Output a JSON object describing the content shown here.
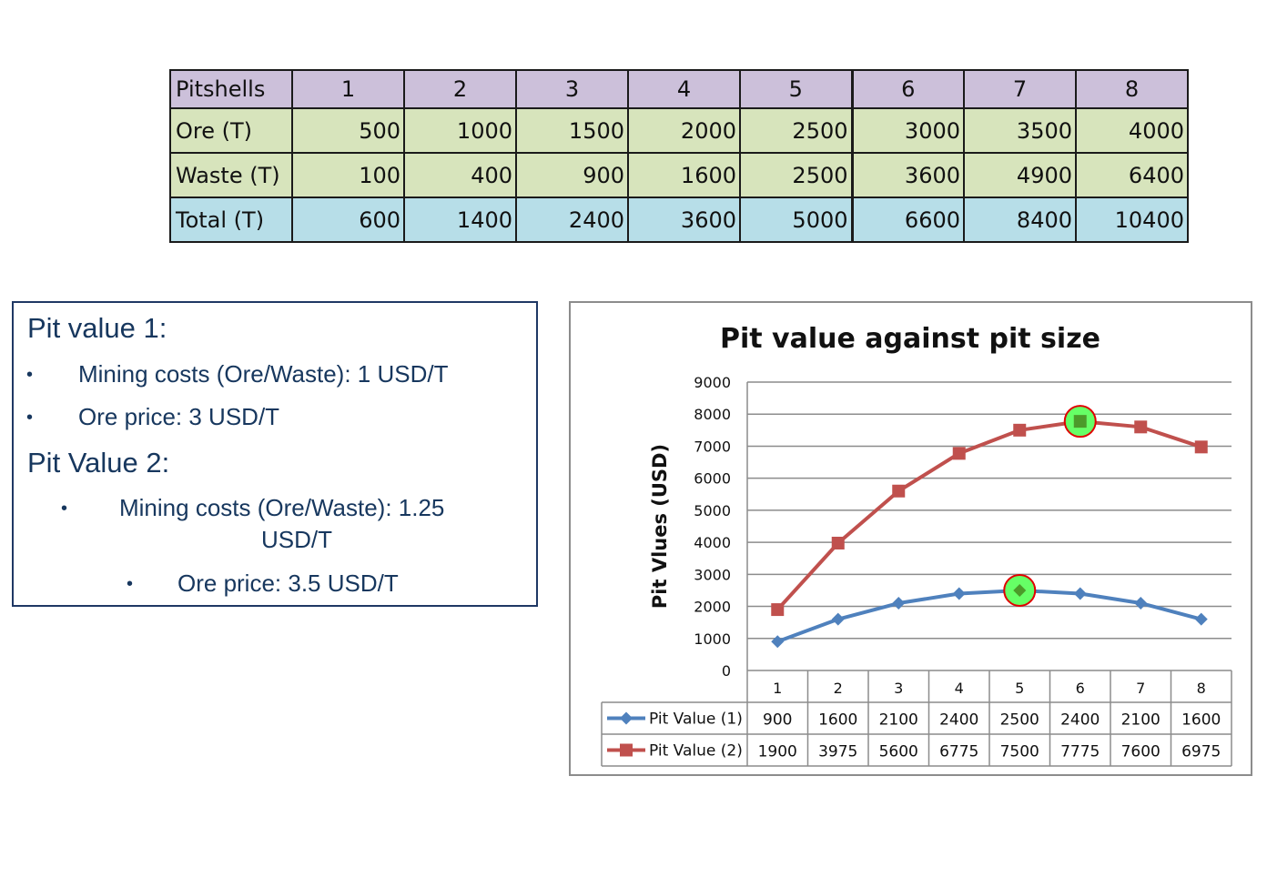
{
  "pit_table": {
    "header_label": "Pitshells",
    "columns": [
      "1",
      "2",
      "3",
      "4",
      "5",
      "6",
      "7",
      "8"
    ],
    "rows": [
      {
        "label": "Ore (T)",
        "values": [
          "500",
          "1000",
          "1500",
          "2000",
          "2500",
          "3000",
          "3500",
          "4000"
        ]
      },
      {
        "label": "Waste (T)",
        "values": [
          "100",
          "400",
          "900",
          "1600",
          "2500",
          "3600",
          "4900",
          "6400"
        ]
      },
      {
        "label": "Total (T)",
        "values": [
          "600",
          "1400",
          "2400",
          "3600",
          "5000",
          "6600",
          "8400",
          "10400"
        ]
      }
    ]
  },
  "parameters": {
    "pit_value_1": {
      "title": "Pit value 1:",
      "bullet": "•",
      "mining_costs": "Mining  costs (Ore/Waste): 1 USD/T",
      "ore_price": "Ore price: 3 USD/T"
    },
    "pit_value_2": {
      "title": "Pit Value 2:",
      "bullet": "•",
      "mining_costs_line1": "Mining  costs (Ore/Waste): 1.25",
      "mining_costs_line2": "USD/T",
      "ore_price": "Ore price: 3.5 USD/T"
    }
  },
  "chart_data": {
    "type": "line",
    "title": "Pit value against pit size",
    "xlabel": "",
    "ylabel": "Pit Vlues (USD)",
    "ylim": [
      0,
      9000
    ],
    "y_ticks": [
      0,
      1000,
      2000,
      3000,
      4000,
      5000,
      6000,
      7000,
      8000,
      9000
    ],
    "grid": true,
    "categories": [
      "1",
      "2",
      "3",
      "4",
      "5",
      "6",
      "7",
      "8"
    ],
    "series": [
      {
        "name": "Pit Value (1)",
        "color": "#4f81bd",
        "marker": "diamond",
        "values": [
          900,
          1600,
          2100,
          2400,
          2500,
          2400,
          2100,
          1600
        ],
        "highlight_index": 4
      },
      {
        "name": "Pit Value (2)",
        "color": "#c0504d",
        "marker": "square",
        "values": [
          1900,
          3975,
          5600,
          6775,
          7500,
          7775,
          7600,
          6975
        ],
        "highlight_index": 5
      }
    ],
    "data_table": true,
    "highlight": {
      "fill": "#66ff66",
      "stroke": "#e00000"
    }
  }
}
